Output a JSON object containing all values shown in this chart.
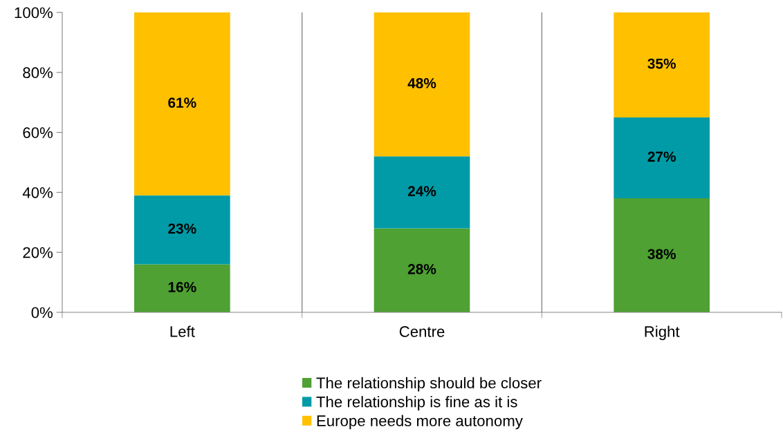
{
  "chart_data": {
    "type": "bar",
    "stacked": true,
    "categories": [
      "Left",
      "Centre",
      "Right"
    ],
    "series": [
      {
        "name": "The relationship should be closer",
        "color": "#4ea132",
        "values": [
          16,
          28,
          38
        ]
      },
      {
        "name": "The relationship is fine as it is",
        "color": "#009ba7",
        "values": [
          23,
          24,
          27
        ]
      },
      {
        "name": "Europe needs more autonomy",
        "color": "#ffc000",
        "values": [
          61,
          48,
          35
        ]
      }
    ],
    "ylim": [
      0,
      100
    ],
    "yticks": [
      {
        "value": 0,
        "label": "0%"
      },
      {
        "value": 20,
        "label": "20%"
      },
      {
        "value": 40,
        "label": "40%"
      },
      {
        "value": 60,
        "label": "60%"
      },
      {
        "value": 80,
        "label": "80%"
      },
      {
        "value": 100,
        "label": "100%"
      }
    ],
    "value_labels": [
      [
        "16%",
        "28%",
        "38%"
      ],
      [
        "23%",
        "24%",
        "27%"
      ],
      [
        "61%",
        "48%",
        "35%"
      ]
    ],
    "grid": "x",
    "legend": "bottom"
  }
}
